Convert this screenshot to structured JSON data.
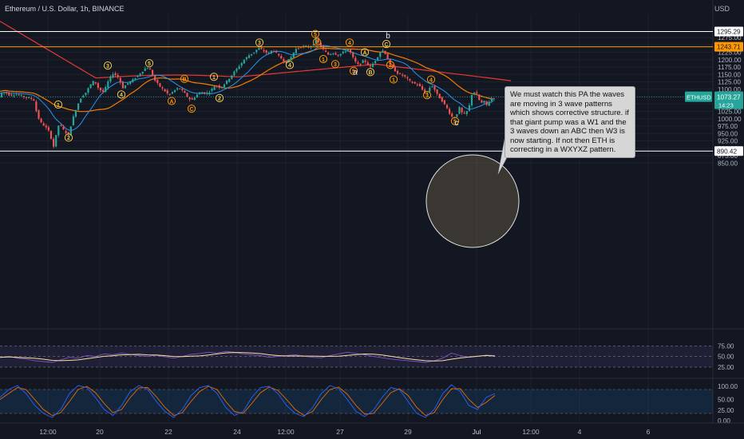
{
  "header": {
    "symbol_line": "Ethereum / U.S. Dollar, 1h, BINANCE",
    "currency": "USD"
  },
  "note_text": "We must watch this PA the waves are moving in 3 wave patterns which shows corrective structure. if that giant pump was a W1 and the 3 waves down an ABC then W3 is now starting. If not then ETH is correcting in a WXYXZ pattern.",
  "colors": {
    "background": "#131722",
    "up": "#26a69a",
    "down": "#ef5350",
    "ma_fast": "#2196f3",
    "ma_slow": "#f57c00",
    "ma_long": "#e53935",
    "level_orange": "#ff9800",
    "level_white": "#ffffff",
    "rsi": "#7e57c2",
    "rsi_signal": "#f5e0a0",
    "stoch_k": "#2962ff",
    "stoch_d": "#ef6c00",
    "label_ring": "#f2c94c"
  },
  "chart_data": {
    "type": "candlestick",
    "price_axis": {
      "ticks": [
        "1275.00",
        "1250.00",
        "1225.00",
        "1200.00",
        "1175.00",
        "1150.00",
        "1125.00",
        "1100.00",
        "1075.00",
        "1050.00",
        "1025.00",
        "1000.00",
        "975.00",
        "950.00",
        "925.00",
        "900.00",
        "875.00",
        "850.00"
      ]
    },
    "time_axis": {
      "ticks": [
        "12:00",
        "20",
        "22",
        "24",
        "12:00",
        "27",
        "29",
        "Jul",
        "12:00",
        "4",
        "6"
      ]
    },
    "levels": [
      {
        "price": 1295.29,
        "label": "1295.29",
        "kind": "white"
      },
      {
        "price": 1243.71,
        "label": "1243.71",
        "kind": "orange"
      },
      {
        "price": 890.42,
        "label": "890.42",
        "kind": "white"
      }
    ],
    "last_price": {
      "symbol": "ETHUSD",
      "price": "1073.27",
      "countdown": "14:23",
      "value": 1073.27
    },
    "path": [
      [
        0,
        1085
      ],
      [
        6,
        1090
      ],
      [
        12,
        1080
      ],
      [
        20,
        1083
      ],
      [
        28,
        1076
      ],
      [
        36,
        1070
      ],
      [
        42,
        1066
      ],
      [
        46,
        1020
      ],
      [
        50,
        990
      ],
      [
        56,
        975
      ],
      [
        62,
        955
      ],
      [
        67,
        905
      ],
      [
        70,
        940
      ],
      [
        74,
        985
      ],
      [
        80,
        960
      ],
      [
        86,
        945
      ],
      [
        90,
        990
      ],
      [
        96,
        1040
      ],
      [
        102,
        1075
      ],
      [
        108,
        1090
      ],
      [
        112,
        1110
      ],
      [
        118,
        1130
      ],
      [
        124,
        1100
      ],
      [
        130,
        1090
      ],
      [
        136,
        1130
      ],
      [
        142,
        1155
      ],
      [
        148,
        1140
      ],
      [
        154,
        1105
      ],
      [
        160,
        1120
      ],
      [
        166,
        1130
      ],
      [
        172,
        1145
      ],
      [
        178,
        1160
      ],
      [
        184,
        1175
      ],
      [
        188,
        1165
      ],
      [
        194,
        1130
      ],
      [
        200,
        1110
      ],
      [
        206,
        1095
      ],
      [
        212,
        1080
      ],
      [
        218,
        1095
      ],
      [
        224,
        1105
      ],
      [
        230,
        1090
      ],
      [
        236,
        1070
      ],
      [
        240,
        1062
      ],
      [
        246,
        1080
      ],
      [
        252,
        1090
      ],
      [
        258,
        1085
      ],
      [
        264,
        1095
      ],
      [
        270,
        1115
      ],
      [
        276,
        1105
      ],
      [
        282,
        1120
      ],
      [
        288,
        1140
      ],
      [
        294,
        1160
      ],
      [
        300,
        1180
      ],
      [
        306,
        1200
      ],
      [
        312,
        1215
      ],
      [
        318,
        1225
      ],
      [
        324,
        1240
      ],
      [
        330,
        1230
      ],
      [
        336,
        1220
      ],
      [
        342,
        1235
      ],
      [
        348,
        1215
      ],
      [
        354,
        1200
      ],
      [
        358,
        1190
      ],
      [
        364,
        1205
      ],
      [
        370,
        1235
      ],
      [
        378,
        1245
      ],
      [
        386,
        1242
      ],
      [
        392,
        1250
      ],
      [
        396,
        1275
      ],
      [
        400,
        1250
      ],
      [
        406,
        1230
      ],
      [
        412,
        1215
      ],
      [
        416,
        1225
      ],
      [
        424,
        1215
      ],
      [
        430,
        1225
      ],
      [
        436,
        1235
      ],
      [
        440,
        1220
      ],
      [
        444,
        1195
      ],
      [
        450,
        1180
      ],
      [
        456,
        1200
      ],
      [
        460,
        1185
      ],
      [
        464,
        1175
      ],
      [
        468,
        1190
      ],
      [
        472,
        1205
      ],
      [
        476,
        1225
      ],
      [
        480,
        1232
      ],
      [
        484,
        1215
      ],
      [
        488,
        1185
      ],
      [
        494,
        1165
      ],
      [
        500,
        1150
      ],
      [
        506,
        1145
      ],
      [
        512,
        1130
      ],
      [
        518,
        1120
      ],
      [
        524,
        1115
      ],
      [
        530,
        1095
      ],
      [
        534,
        1082
      ],
      [
        538,
        1105
      ],
      [
        542,
        1112
      ],
      [
        548,
        1080
      ],
      [
        554,
        1060
      ],
      [
        560,
        1035
      ],
      [
        564,
        1015
      ],
      [
        568,
        1000
      ],
      [
        572,
        1015
      ],
      [
        576,
        1040
      ],
      [
        580,
        1010
      ],
      [
        584,
        1020
      ],
      [
        588,
        1045
      ],
      [
        592,
        1095
      ],
      [
        598,
        1080
      ],
      [
        602,
        1050
      ],
      [
        606,
        1060
      ],
      [
        610,
        1045
      ],
      [
        614,
        1065
      ],
      [
        620,
        1073.27
      ]
    ],
    "wave_labels": [
      {
        "t": "1",
        "x": 73,
        "price": 1048,
        "ring": "yellow"
      },
      {
        "t": "2",
        "x": 86,
        "price": 936,
        "ring": "yellow"
      },
      {
        "t": "3",
        "x": 135,
        "price": 1180,
        "ring": "yellow"
      },
      {
        "t": "4",
        "x": 152,
        "price": 1082,
        "ring": "yellow"
      },
      {
        "t": "5",
        "x": 187,
        "price": 1188,
        "ring": "yellow"
      },
      {
        "t": "A",
        "x": 215,
        "price": 1060,
        "ring": "orange"
      },
      {
        "t": "B",
        "x": 231,
        "price": 1135,
        "ring": "orange"
      },
      {
        "t": "C",
        "x": 240,
        "price": 1034,
        "ring": "orange"
      },
      {
        "t": "1",
        "x": 268,
        "price": 1142,
        "ring": "yellow"
      },
      {
        "t": "2",
        "x": 275,
        "price": 1070,
        "ring": "yellow"
      },
      {
        "t": "3",
        "x": 325,
        "price": 1258,
        "ring": "yellow"
      },
      {
        "t": "4",
        "x": 363,
        "price": 1182,
        "ring": "yellow"
      },
      {
        "t": "5",
        "x": 395,
        "price": 1287,
        "ring": "orange"
      },
      {
        "t": "2",
        "x": 397,
        "price": 1260,
        "ring": "orange"
      },
      {
        "t": "1",
        "x": 405,
        "price": 1202,
        "ring": "orange"
      },
      {
        "t": "3",
        "x": 420,
        "price": 1185,
        "ring": "orange"
      },
      {
        "t": "4",
        "x": 438,
        "price": 1258,
        "ring": "orange"
      },
      {
        "t": "A",
        "x": 457,
        "price": 1225,
        "ring": "yellow"
      },
      {
        "t": "5",
        "x": 443,
        "price": 1162,
        "ring": "orange"
      },
      {
        "t": "B",
        "x": 464,
        "price": 1158,
        "ring": "yellow"
      },
      {
        "t": "C",
        "x": 484,
        "price": 1253,
        "ring": "yellow"
      },
      {
        "t": "2",
        "x": 489,
        "price": 1182,
        "ring": "orange"
      },
      {
        "t": "1",
        "x": 493,
        "price": 1133,
        "ring": "orange"
      },
      {
        "t": "4",
        "x": 540,
        "price": 1133,
        "ring": "orange"
      },
      {
        "t": "3",
        "x": 535,
        "price": 1080,
        "ring": "orange"
      },
      {
        "t": "5",
        "x": 570,
        "price": 992,
        "ring": "orange"
      }
    ],
    "letter_labels": [
      {
        "t": "b",
        "x": 486,
        "price": 1272
      },
      {
        "t": "a",
        "x": 445,
        "price": 1150
      },
      {
        "t": "c",
        "x": 572,
        "price": 978
      }
    ],
    "rsi": {
      "ticks": [
        "75.00",
        "50.00",
        "25.00"
      ],
      "values": [
        48,
        50,
        46,
        44,
        40,
        38,
        36,
        42,
        48,
        46,
        52,
        50,
        56,
        54,
        58,
        55,
        52,
        50,
        53,
        49,
        46,
        50,
        55,
        57,
        60,
        58,
        62,
        60,
        56,
        54,
        52,
        48,
        50,
        52,
        54,
        51,
        48,
        47,
        52,
        56,
        60,
        57,
        54,
        50,
        47,
        44,
        42,
        40,
        38,
        36,
        40,
        46,
        58,
        52,
        48,
        50,
        53,
        52
      ]
    },
    "stoch": {
      "ticks": [
        "100.00",
        "50.00",
        "25.00",
        "0.00"
      ],
      "k": [
        60,
        80,
        90,
        70,
        40,
        20,
        10,
        30,
        70,
        90,
        85,
        60,
        30,
        15,
        40,
        75,
        90,
        80,
        50,
        25,
        10,
        30,
        65,
        85,
        90,
        70,
        35,
        15,
        25,
        60,
        85,
        88,
        70,
        40,
        20,
        12,
        35,
        70,
        90,
        82,
        55,
        25,
        12,
        28,
        60,
        85,
        80,
        50,
        20,
        10,
        30,
        70,
        92,
        75,
        40,
        30,
        60,
        70
      ],
      "d": [
        55,
        70,
        85,
        80,
        55,
        30,
        15,
        22,
        50,
        80,
        88,
        72,
        45,
        22,
        30,
        60,
        84,
        85,
        62,
        35,
        15,
        22,
        50,
        75,
        88,
        80,
        50,
        25,
        20,
        45,
        72,
        86,
        78,
        55,
        30,
        15,
        25,
        55,
        80,
        86,
        68,
        40,
        18,
        20,
        45,
        72,
        82,
        65,
        35,
        15,
        22,
        55,
        82,
        82,
        55,
        35,
        48,
        65
      ]
    }
  }
}
